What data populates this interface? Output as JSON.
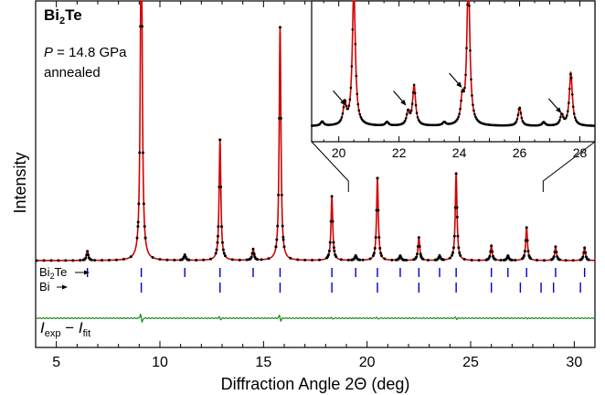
{
  "chart_data": [
    {
      "type": "line",
      "xlabel": "Diffraction Angle 2Θ (deg)",
      "ylabel": "Intensity",
      "xlim": [
        4,
        31
      ],
      "xticks": [
        5,
        10,
        15,
        20,
        25,
        30
      ],
      "yticks": [],
      "grid": false,
      "annotations": {
        "compound": "Bi",
        "compound_sub": "2",
        "compound_end": "Te",
        "pressure_symbol": "P",
        "pressure_value": " = 14.8 GPa",
        "condition": "annealed"
      },
      "peaks_label": "",
      "peaks": [
        {
          "x": 6.5,
          "y": 10
        },
        {
          "x": 9.1,
          "y": 420
        },
        {
          "x": 11.2,
          "y": 6
        },
        {
          "x": 12.9,
          "y": 132
        },
        {
          "x": 14.5,
          "y": 12
        },
        {
          "x": 15.8,
          "y": 255
        },
        {
          "x": 18.3,
          "y": 70
        },
        {
          "x": 19.45,
          "y": 5
        },
        {
          "x": 20.5,
          "y": 90
        },
        {
          "x": 21.6,
          "y": 5
        },
        {
          "x": 22.5,
          "y": 25
        },
        {
          "x": 23.5,
          "y": 5
        },
        {
          "x": 24.3,
          "y": 95
        },
        {
          "x": 26.0,
          "y": 16
        },
        {
          "x": 26.8,
          "y": 5
        },
        {
          "x": 27.7,
          "y": 36
        },
        {
          "x": 29.1,
          "y": 15
        },
        {
          "x": 30.5,
          "y": 14
        }
      ],
      "tick_rows": [
        {
          "name": "Bi",
          "name_sub": "2",
          "name_end": "Te",
          "positions": [
            6.5,
            9.1,
            11.2,
            12.9,
            14.5,
            15.8,
            18.3,
            19.45,
            20.5,
            21.6,
            22.5,
            23.5,
            24.3,
            26.0,
            26.8,
            27.7,
            29.1,
            30.5
          ]
        },
        {
          "name": "Bi",
          "name_sub": "",
          "name_end": "",
          "positions": [
            9.1,
            12.9,
            15.8,
            18.3,
            20.5,
            22.5,
            24.3,
            26.0,
            27.4,
            28.4,
            29.0,
            30.3
          ]
        }
      ],
      "difference_label": {
        "i1": "I",
        "s1": "exp",
        "minus": " − ",
        "i2": "I",
        "s2": "fit"
      },
      "colors": {
        "observed": "#000000",
        "fit": "#d40000",
        "ticks": "#0000cc",
        "difference": "#1a8a1a"
      }
    },
    {
      "type": "line",
      "xlim": [
        19.1,
        28.5
      ],
      "xticks": [
        20,
        22,
        24,
        26,
        28
      ],
      "arrows_at": [
        20.3,
        22.3,
        24.15,
        27.45
      ],
      "peaks_label": "",
      "peaks": [
        {
          "x": 19.45,
          "y": 8
        },
        {
          "x": 20.2,
          "y": 40
        },
        {
          "x": 20.5,
          "y": 260
        },
        {
          "x": 21.6,
          "y": 7
        },
        {
          "x": 22.3,
          "y": 25
        },
        {
          "x": 22.5,
          "y": 75
        },
        {
          "x": 23.5,
          "y": 6
        },
        {
          "x": 24.1,
          "y": 45
        },
        {
          "x": 24.3,
          "y": 280
        },
        {
          "x": 26.0,
          "y": 35
        },
        {
          "x": 26.8,
          "y": 7
        },
        {
          "x": 27.4,
          "y": 20
        },
        {
          "x": 27.7,
          "y": 100
        }
      ]
    }
  ]
}
